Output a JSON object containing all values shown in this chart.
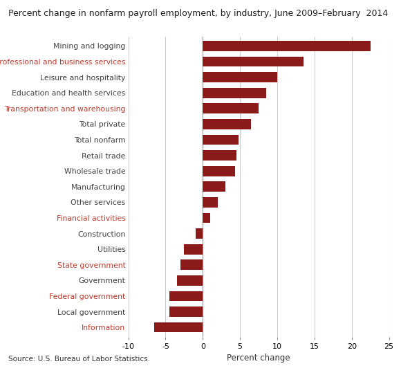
{
  "title": "Percent change in nonfarm payroll employment, by industry, June 2009–February  2014",
  "xlabel": "Percent change",
  "source": "Source: U.S. Bureau of Labor Statistics.",
  "bar_color": "#8B1A1A",
  "categories": [
    "Information",
    "Local government",
    "Federal government",
    "Government",
    "State government",
    "Utilities",
    "Construction",
    "Financial activities",
    "Other services",
    "Manufacturing",
    "Wholesale trade",
    "Retail trade",
    "Total nonfarm",
    "Total private",
    "Transportation and warehousing",
    "Education and health services",
    "Leisure and hospitality",
    "Professional and business services",
    "Mining and logging"
  ],
  "values": [
    -6.5,
    -4.5,
    -4.5,
    -3.5,
    -3.0,
    -2.5,
    -1.0,
    1.0,
    2.0,
    3.0,
    4.3,
    4.5,
    4.8,
    6.5,
    7.5,
    8.5,
    10.0,
    13.5,
    22.5
  ],
  "highlight_labels": [
    "Professional and business services",
    "Transportation and warehousing",
    "Financial activities",
    "State government",
    "Federal government",
    "Information"
  ],
  "xlim": [
    -10,
    25
  ],
  "xticks": [
    -10,
    -5,
    0,
    5,
    10,
    15,
    20,
    25
  ],
  "background_color": "#ffffff",
  "grid_color": "#cccccc",
  "label_color_normal": "#404040",
  "label_color_highlight": "#c0392b",
  "title_fontsize": 9,
  "label_fontsize": 7.8,
  "xlabel_fontsize": 8.5,
  "source_fontsize": 7.5
}
